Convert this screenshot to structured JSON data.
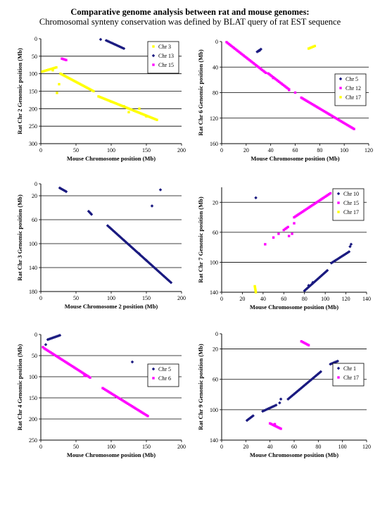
{
  "header": {
    "title": "Comparative genome analysis between  rat and mouse genomes:",
    "subtitle": "Chromosomal synteny conservation was defined by BLAT query of rat EST sequence"
  },
  "colors": {
    "navy": "#1a1a80",
    "magenta": "#ff00ff",
    "yellow": "#ffff00",
    "gridline": "#000000"
  },
  "chart_data": [
    {
      "type": "scatter",
      "xlabel": "Mouse Chromosome position (Mb)",
      "ylabel": "Rat Chr 2 Genomic position (Mb)",
      "xlim": [
        0,
        200
      ],
      "ylim": [
        0,
        300
      ],
      "y_inverted": true,
      "xticks": [
        0,
        50,
        100,
        150,
        200
      ],
      "yticks": [
        0,
        50,
        100,
        150,
        200,
        250,
        300
      ],
      "legend": "right",
      "series": [
        {
          "name": "Chr 3",
          "color": "#ffff00",
          "marker": "square",
          "segments": [
            [
              2,
              94,
              22,
              82
            ],
            [
              28,
              100,
              75,
              150
            ],
            [
              82,
              165,
              165,
              232
            ]
          ],
          "points": [
            [
              17,
              90
            ],
            [
              23,
              155
            ],
            [
              26,
              130
            ],
            [
              100,
              180
            ],
            [
              118,
              193
            ],
            [
              125,
              210
            ],
            [
              140,
              200
            ],
            [
              150,
              222
            ]
          ]
        },
        {
          "name": "Chr 13",
          "color": "#1a1a80",
          "marker": "diamond",
          "segments": [
            [
              93,
              5,
              118,
              28
            ]
          ],
          "points": [
            [
              85,
              2
            ]
          ]
        },
        {
          "name": "Chr 15",
          "color": "#ff00ff",
          "marker": "square",
          "segments": [
            [
              30,
              57,
              36,
              61
            ]
          ],
          "points": []
        }
      ]
    },
    {
      "type": "scatter",
      "xlabel": "Mouse Chromosome position (Mb)",
      "ylabel": "Rat Chr 6 Genomic position (Mb)",
      "xlim": [
        0,
        120
      ],
      "ylim": [
        0,
        160
      ],
      "y_inverted": true,
      "xticks": [
        0,
        20,
        40,
        60,
        80,
        100,
        120
      ],
      "yticks": [
        0,
        40,
        80,
        120,
        160
      ],
      "legend": "right",
      "series": [
        {
          "name": "Chr 5",
          "color": "#1a1a80",
          "marker": "diamond",
          "segments": [
            [
              29,
              16,
              32,
              12
            ]
          ],
          "points": [
            [
              30,
              15
            ],
            [
              31,
              14
            ]
          ]
        },
        {
          "name": "Chr 12",
          "color": "#ff00ff",
          "marker": "square",
          "segments": [
            [
              4,
              1,
              36,
              49
            ],
            [
              38,
              50,
              55,
              75
            ],
            [
              65,
              88,
              108,
              137
            ]
          ],
          "points": [
            [
              60,
              80
            ],
            [
              42,
              57
            ],
            [
              55,
              76
            ]
          ]
        },
        {
          "name": "Chr 17",
          "color": "#ffff00",
          "marker": "square",
          "segments": [
            [
              71,
              11,
              76,
              7
            ]
          ],
          "points": []
        }
      ]
    },
    {
      "type": "scatter",
      "xlabel": "Mouse Chromosome 2 position (Mb)",
      "ylabel": "Rat Chr 3 Genomic position (Mb)",
      "xlim": [
        0,
        200
      ],
      "ylim": [
        0,
        180
      ],
      "y_inverted": true,
      "xticks": [
        0,
        50,
        100,
        150,
        200
      ],
      "yticks": [
        0,
        20,
        60,
        100,
        140,
        180
      ],
      "legend": "none",
      "series": [
        {
          "name": "",
          "color": "#1a1a80",
          "marker": "diamond",
          "segments": [
            [
              27,
              7,
              36,
              13
            ],
            [
              68,
              46,
              72,
              51
            ],
            [
              95,
              70,
              185,
              165
            ]
          ],
          "points": [
            [
              170,
              10
            ],
            [
              158,
              37
            ],
            [
              150,
              128
            ],
            [
              140,
              117
            ]
          ]
        }
      ]
    },
    {
      "type": "scatter",
      "xlabel": "Mouse Chromosome position (Mb)",
      "ylabel": "Rat Chr 7 Genomic position (Mb)",
      "xlim": [
        0,
        140
      ],
      "ylim": [
        0,
        140
      ],
      "y_inverted": true,
      "xticks": [
        0,
        20,
        40,
        60,
        80,
        100,
        120,
        140
      ],
      "yticks": [
        20,
        60,
        100,
        140
      ],
      "legend": "right",
      "series": [
        {
          "name": "Chr 10",
          "color": "#1a1a80",
          "marker": "diamond",
          "segments": [
            [
              80,
              138,
              102,
              111
            ],
            [
              106,
              101,
              123,
              86
            ]
          ],
          "points": [
            [
              33,
              14
            ],
            [
              125,
              76
            ],
            [
              124,
              79
            ],
            [
              88,
              127
            ],
            [
              84,
              131
            ]
          ]
        },
        {
          "name": "Chr 15",
          "color": "#ff00ff",
          "marker": "square",
          "segments": [
            [
              70,
              40,
              105,
              8
            ],
            [
              60,
              57,
              64,
              53
            ]
          ],
          "points": [
            [
              42,
              76
            ],
            [
              50,
              67
            ],
            [
              55,
              62
            ],
            [
              65,
              65
            ],
            [
              68,
              62
            ],
            [
              70,
              48
            ]
          ]
        },
        {
          "name": "Chr 17",
          "color": "#ffff00",
          "marker": "square",
          "segments": [
            [
              32,
              132,
              33,
              140
            ]
          ],
          "points": []
        }
      ]
    },
    {
      "type": "scatter",
      "xlabel": "Mouse Chromosome position (Mb)",
      "ylabel": "Rat Chr 4 Genomic position (Mb)",
      "xlim": [
        0,
        200
      ],
      "ylim": [
        0,
        250
      ],
      "y_inverted": true,
      "xticks": [
        0,
        50,
        100,
        150,
        200
      ],
      "yticks": [
        0,
        50,
        100,
        150,
        200,
        250
      ],
      "legend": "right",
      "series": [
        {
          "name": "Chr 5",
          "color": "#1a1a80",
          "marker": "diamond",
          "segments": [
            [
              10,
              12,
              27,
              2
            ]
          ],
          "points": [
            [
              7,
              24
            ],
            [
              130,
              65
            ]
          ]
        },
        {
          "name": "Chr 6",
          "color": "#ff00ff",
          "marker": "square",
          "segments": [
            [
              5,
              33,
              70,
              102
            ],
            [
              88,
              127,
              152,
              193
            ]
          ],
          "points": [
            [
              3,
              30
            ],
            [
              62,
              98
            ]
          ]
        }
      ]
    },
    {
      "type": "scatter",
      "xlabel": "Mouse Chromosome position (Mb)",
      "ylabel": "Rat Chr 9 Genomic position (Mb)",
      "xlim": [
        0,
        120
      ],
      "ylim": [
        0,
        140
      ],
      "y_inverted": true,
      "xticks": [
        0,
        20,
        40,
        60,
        80,
        100,
        120
      ],
      "yticks": [
        0,
        20,
        60,
        100,
        140
      ],
      "legend": "right",
      "series": [
        {
          "name": "Chr 1",
          "color": "#1a1a80",
          "marker": "diamond",
          "segments": [
            [
              21,
              114,
              26,
              108
            ],
            [
              34,
              102,
              45,
              94
            ],
            [
              55,
              86,
              82,
              50
            ],
            [
              90,
              40,
              96,
              36
            ]
          ],
          "points": [
            [
              48,
              91
            ],
            [
              49,
              86
            ]
          ]
        },
        {
          "name": "Chr 17",
          "color": "#ff00ff",
          "marker": "square",
          "segments": [
            [
              40,
              118,
              49,
              125
            ],
            [
              66,
              10,
              72,
              15
            ]
          ],
          "points": [
            [
              44,
              119
            ]
          ]
        }
      ]
    }
  ]
}
